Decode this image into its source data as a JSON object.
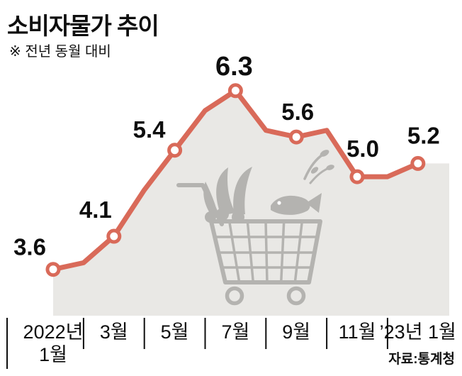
{
  "header": {
    "title": "소비자물가 추이",
    "subtitle": "※ 전년 동월 대비"
  },
  "footer": {
    "source": "자료:통계청"
  },
  "chart_data": {
    "type": "line",
    "title": "소비자물가 추이",
    "subtitle": "※ 전년 동월 대비",
    "x": [
      "2022-01",
      "2022-02",
      "2022-03",
      "2022-04",
      "2022-05",
      "2022-06",
      "2022-07",
      "2022-08",
      "2022-09",
      "2022-10",
      "2022-11",
      "2022-12",
      "2023-01"
    ],
    "values": [
      3.6,
      3.7,
      4.1,
      4.8,
      5.4,
      6.0,
      6.3,
      5.7,
      5.6,
      5.7,
      5.0,
      5.0,
      5.2
    ],
    "labeled_points": [
      {
        "index": 0,
        "label": "3.6"
      },
      {
        "index": 2,
        "label": "4.1"
      },
      {
        "index": 4,
        "label": "5.4"
      },
      {
        "index": 6,
        "label": "6.3"
      },
      {
        "index": 8,
        "label": "5.6"
      },
      {
        "index": 10,
        "label": "5.0"
      },
      {
        "index": 12,
        "label": "5.2"
      }
    ],
    "x_ticks": [
      {
        "index": 0,
        "lines": [
          "2022년",
          "1월"
        ]
      },
      {
        "index": 2,
        "lines": [
          "3월"
        ]
      },
      {
        "index": 4,
        "lines": [
          "5월"
        ]
      },
      {
        "index": 6,
        "lines": [
          "7월"
        ]
      },
      {
        "index": 8,
        "lines": [
          "9월"
        ]
      },
      {
        "index": 10,
        "lines": [
          "11월"
        ]
      },
      {
        "index": 12,
        "lines": [
          "’23년 1월"
        ]
      }
    ],
    "ylim": [
      2.9,
      6.8
    ],
    "legend": "none",
    "grid": false,
    "source": "자료:통계청",
    "colors": {
      "line": "#d96a59",
      "area": "#e9e8e5",
      "marker_fill": "#ffffff",
      "cart": "#b4b3b0",
      "text": "#0e0e0e"
    }
  }
}
